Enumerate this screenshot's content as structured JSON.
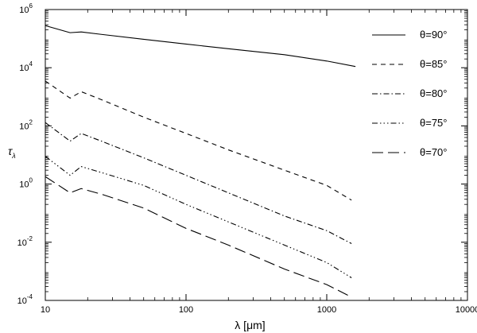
{
  "chart_data": {
    "type": "line",
    "xlabel": "λ  [μm]",
    "ylabel": "τλ",
    "x_scale": "log",
    "y_scale": "log",
    "xlim": [
      10,
      10000
    ],
    "ylim": [
      0.0001,
      1000000
    ],
    "x_ticks": [
      {
        "value": 10,
        "label": "10"
      },
      {
        "value": 100,
        "label": "100"
      },
      {
        "value": 1000,
        "label": "1000"
      },
      {
        "value": 10000,
        "label": "10000"
      }
    ],
    "y_ticks": [
      {
        "value": 0.0001,
        "base": "10",
        "exp": "-4"
      },
      {
        "value": 0.01,
        "base": "10",
        "exp": "-2"
      },
      {
        "value": 1,
        "base": "10",
        "exp": "0"
      },
      {
        "value": 100,
        "base": "10",
        "exp": "2"
      },
      {
        "value": 10000,
        "base": "10",
        "exp": "4"
      },
      {
        "value": 1000000,
        "base": "10",
        "exp": "6"
      }
    ],
    "grid": false,
    "legend_position": "top-right",
    "series": [
      {
        "name": "θ=90°",
        "dash": "solid",
        "x": [
          10,
          15,
          18,
          25,
          50,
          100,
          200,
          500,
          1000,
          1600
        ],
        "y": [
          280000,
          160000,
          170000,
          140000,
          95000,
          65000,
          45000,
          28000,
          17000,
          11000
        ]
      },
      {
        "name": "θ=85°",
        "dash": "dash",
        "x": [
          10,
          15,
          18,
          25,
          50,
          100,
          200,
          500,
          1000,
          1500
        ],
        "y": [
          3500,
          900,
          1500,
          800,
          200,
          55,
          15,
          3,
          0.9,
          0.28
        ]
      },
      {
        "name": "θ=80°",
        "dash": "dashdot",
        "x": [
          10,
          15,
          18,
          25,
          50,
          100,
          200,
          500,
          1000,
          1500
        ],
        "y": [
          130,
          30,
          55,
          30,
          8,
          2,
          0.5,
          0.08,
          0.025,
          0.009
        ]
      },
      {
        "name": "θ=75°",
        "dash": "dashdotdotdot",
        "x": [
          10,
          15,
          18,
          25,
          50,
          100,
          200,
          500,
          1000,
          1500
        ],
        "y": [
          9,
          2,
          4,
          2.5,
          0.9,
          0.2,
          0.05,
          0.008,
          0.002,
          0.0006
        ]
      },
      {
        "name": "θ=70°",
        "dash": "longdash",
        "x": [
          10,
          15,
          18,
          25,
          50,
          100,
          200,
          500,
          1000,
          1500
        ],
        "y": [
          1.8,
          0.5,
          0.7,
          0.45,
          0.15,
          0.03,
          0.008,
          0.0012,
          0.00035,
          0.00013
        ]
      }
    ]
  }
}
